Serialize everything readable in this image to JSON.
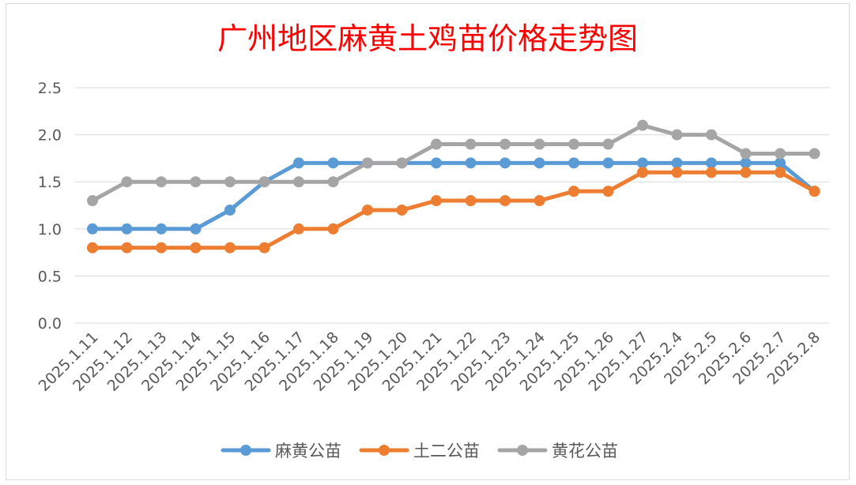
{
  "chart_data": {
    "type": "line",
    "title": "广州地区麻黄土鸡苗价格走势图",
    "categories": [
      "2025.1.11",
      "2025.1.12",
      "2025.1.13",
      "2025.1.14",
      "2025.1.15",
      "2025.1.16",
      "2025.1.17",
      "2025.1.18",
      "2025.1.19",
      "2025.1.20",
      "2025.1.21",
      "2025.1.22",
      "2025.1.23",
      "2025.1.24",
      "2025.1.25",
      "2025.1.26",
      "2025.1.27",
      "2025.2.4",
      "2025.2.5",
      "2025.2.6",
      "2025.2.7",
      "2025.2.8"
    ],
    "series": [
      {
        "name": "麻黄公苗",
        "color": "#5b9bd5",
        "values": [
          1.0,
          1.0,
          1.0,
          1.0,
          1.2,
          1.5,
          1.7,
          1.7,
          1.7,
          1.7,
          1.7,
          1.7,
          1.7,
          1.7,
          1.7,
          1.7,
          1.7,
          1.7,
          1.7,
          1.7,
          1.7,
          1.4
        ]
      },
      {
        "name": "土二公苗",
        "color": "#ed7d31",
        "values": [
          0.8,
          0.8,
          0.8,
          0.8,
          0.8,
          0.8,
          1.0,
          1.0,
          1.2,
          1.2,
          1.3,
          1.3,
          1.3,
          1.3,
          1.4,
          1.4,
          1.6,
          1.6,
          1.6,
          1.6,
          1.6,
          1.4
        ]
      },
      {
        "name": "黄花公苗",
        "color": "#a5a5a5",
        "values": [
          1.3,
          1.5,
          1.5,
          1.5,
          1.5,
          1.5,
          1.5,
          1.5,
          1.7,
          1.7,
          1.9,
          1.9,
          1.9,
          1.9,
          1.9,
          1.9,
          2.1,
          2.0,
          2.0,
          1.8,
          1.8,
          1.8
        ]
      }
    ],
    "ylim": [
      0,
      2.5
    ],
    "yticks": [
      "0.0",
      "0.5",
      "1.0",
      "1.5",
      "2.0",
      "2.5"
    ],
    "ytick_values": [
      0,
      0.5,
      1.0,
      1.5,
      2.0,
      2.5
    ],
    "grid": true,
    "legend_position": "bottom"
  }
}
